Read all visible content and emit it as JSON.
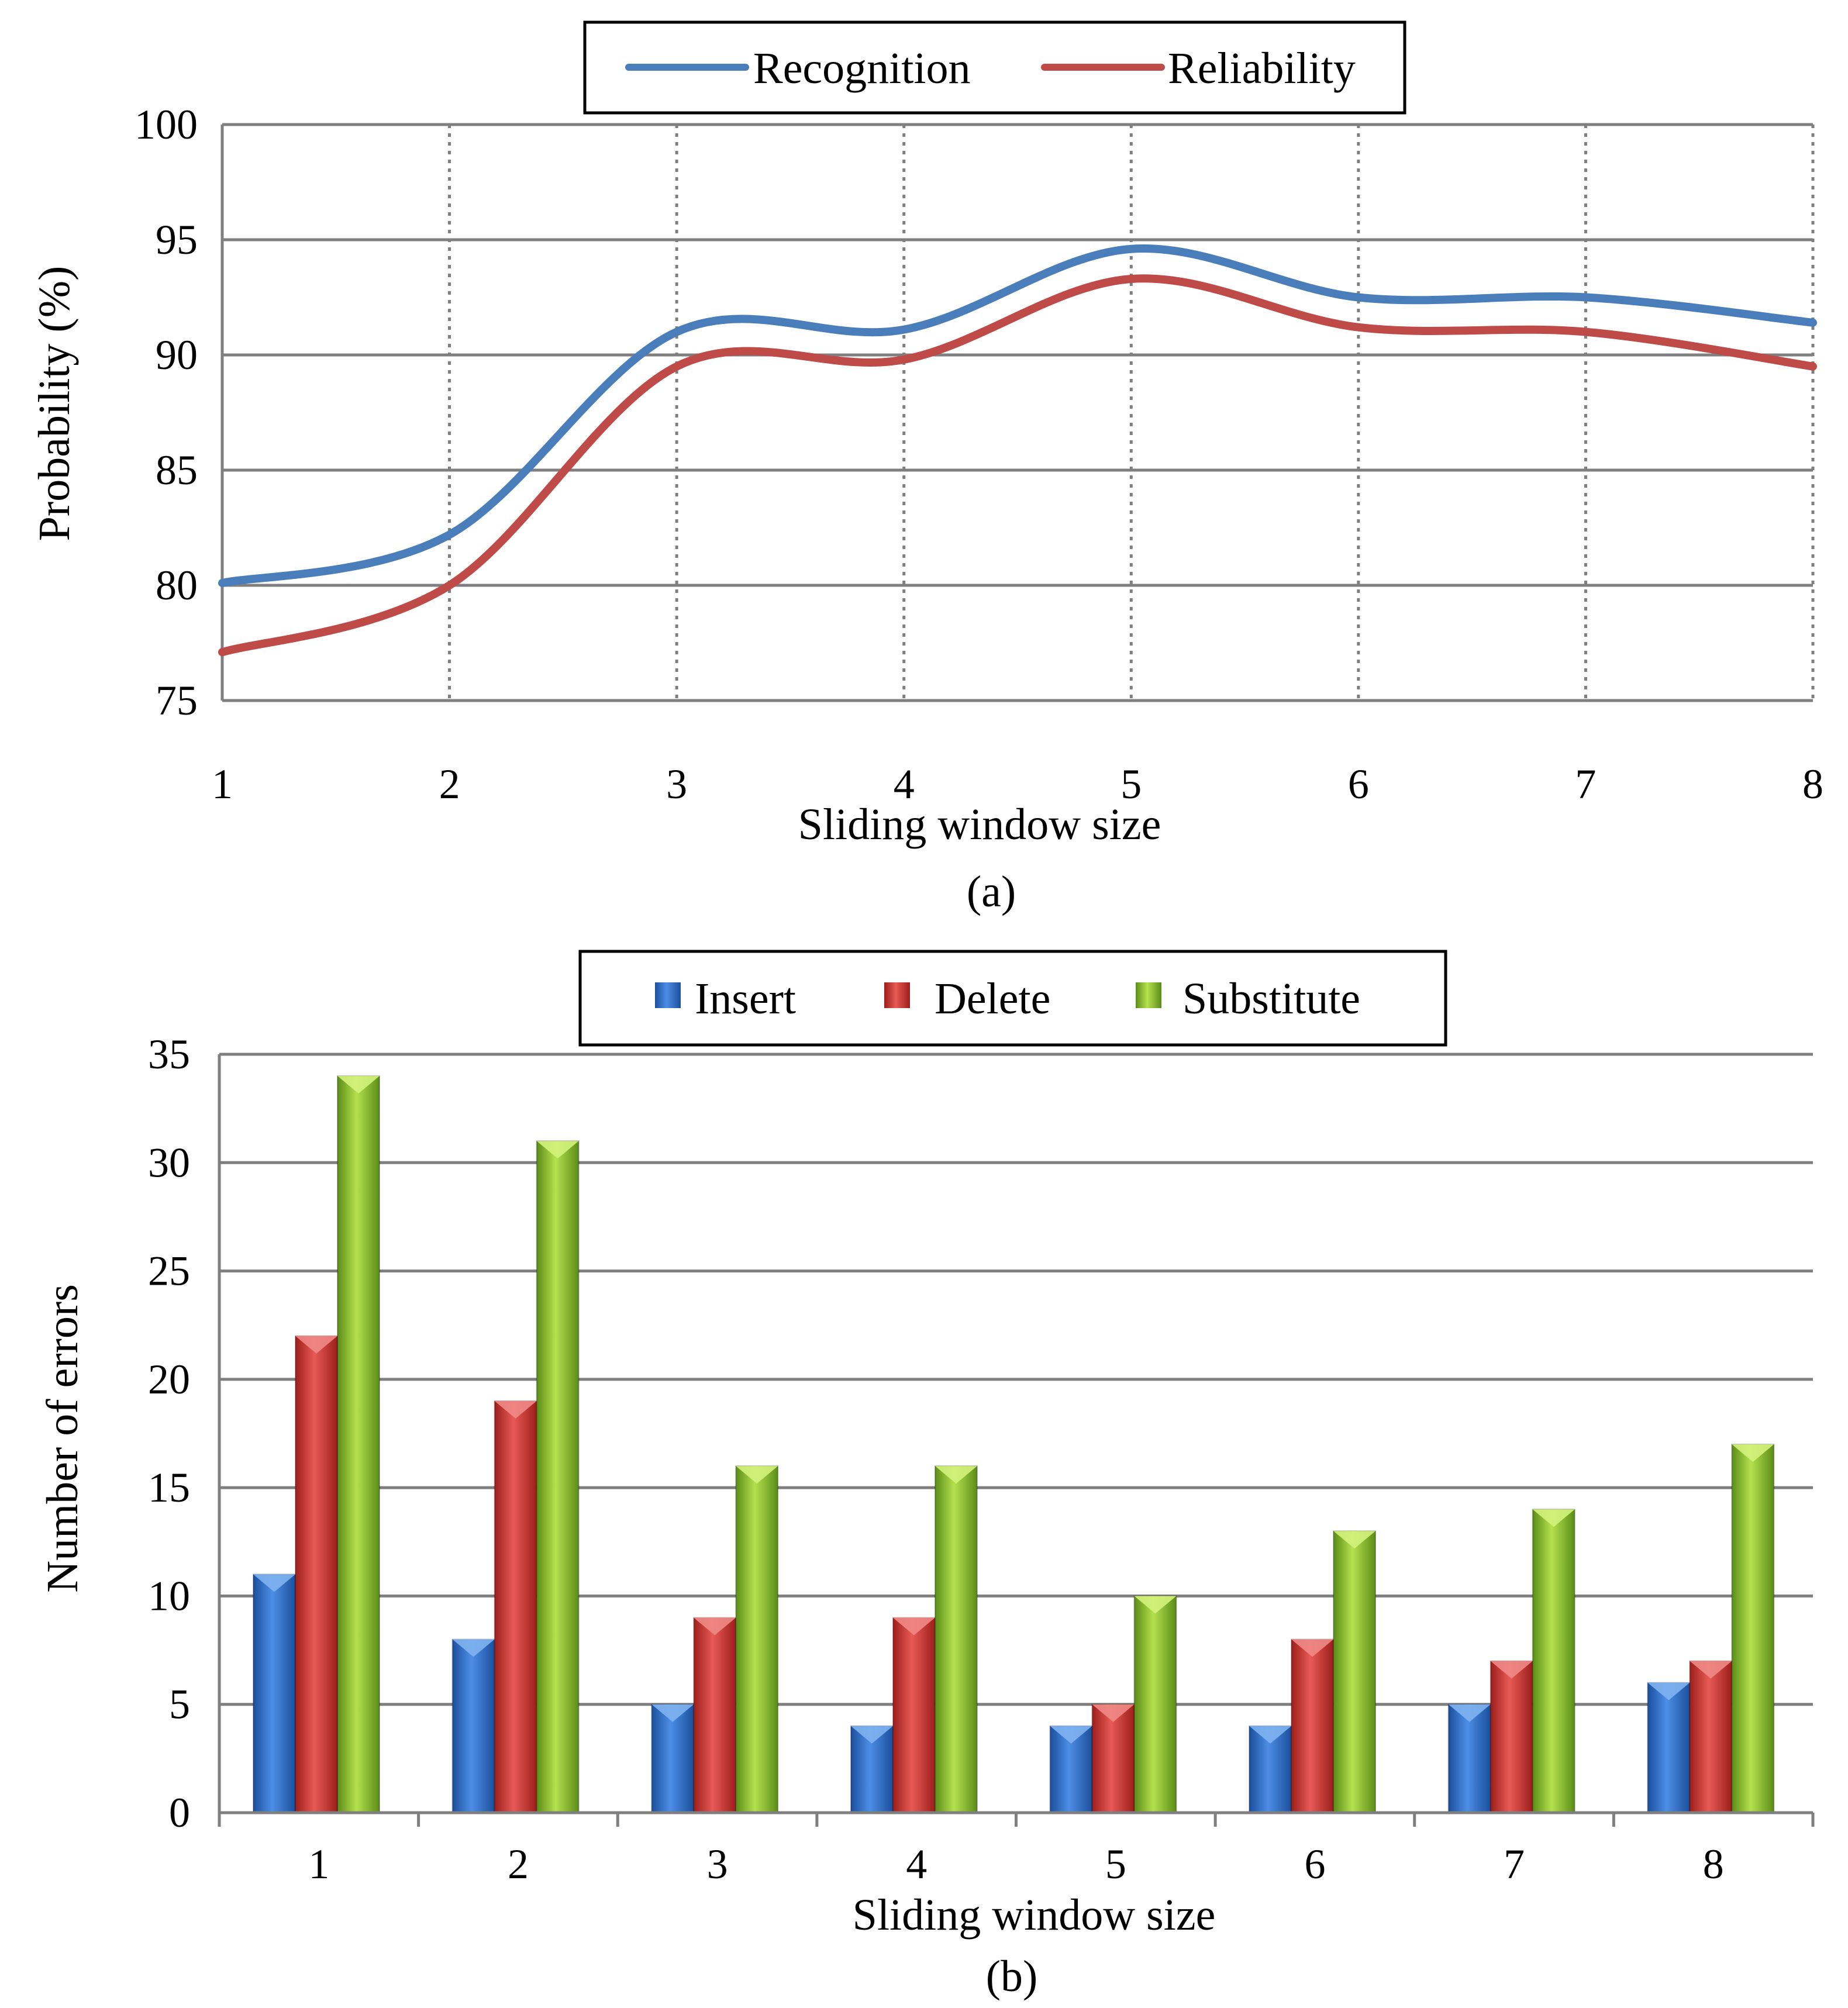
{
  "chart_data": [
    {
      "type": "line",
      "smooth": true,
      "caption": "(a)",
      "xlabel": "Sliding window size",
      "ylabel": "Probability (%)",
      "x": [
        1,
        2,
        3,
        4,
        5,
        6,
        7,
        8
      ],
      "x_tick_labels": [
        "1",
        "2",
        "3",
        "4",
        "5",
        "6",
        "7",
        "8"
      ],
      "ylim": [
        75,
        100
      ],
      "y_tick_labels": [
        "75",
        "80",
        "85",
        "90",
        "95",
        "100"
      ],
      "grid": "horizontal solid, vertical dotted",
      "legend_position": "top-center",
      "series": [
        {
          "name": "Recognition",
          "color": "#4a7ebb",
          "values": [
            80.1,
            82.2,
            91.0,
            91.1,
            94.6,
            92.5,
            92.5,
            91.4
          ]
        },
        {
          "name": "Reliability",
          "color": "#be4b48",
          "values": [
            77.1,
            80.0,
            89.5,
            89.8,
            93.3,
            91.2,
            91.0,
            89.5
          ]
        }
      ]
    },
    {
      "type": "bar",
      "caption": "(b)",
      "xlabel": "Sliding window size",
      "ylabel": "Number of errors",
      "categories": [
        "1",
        "2",
        "3",
        "4",
        "5",
        "6",
        "7",
        "8"
      ],
      "ylim": [
        0,
        35
      ],
      "y_tick_labels": [
        "0",
        "5",
        "10",
        "15",
        "20",
        "25",
        "30",
        "35"
      ],
      "grid": "horizontal",
      "legend_position": "top-center",
      "series": [
        {
          "name": "Insert",
          "color": "#2f6fc9",
          "values": [
            11,
            8,
            5,
            4,
            4,
            4,
            5,
            6
          ]
        },
        {
          "name": "Delete",
          "color": "#d23b37",
          "values": [
            22,
            19,
            9,
            9,
            5,
            8,
            7,
            7
          ]
        },
        {
          "name": "Substitute",
          "color": "#8fc232",
          "values": [
            34,
            31,
            16,
            16,
            10,
            13,
            14,
            17
          ]
        }
      ]
    }
  ]
}
